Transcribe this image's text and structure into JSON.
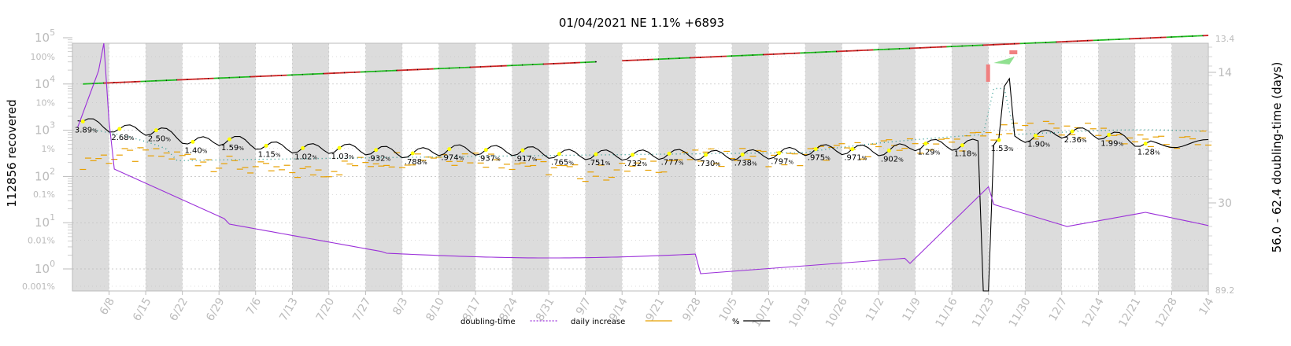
{
  "chart_data": {
    "type": "line",
    "title": "01/04/2021 NE 1.1% +6893",
    "ylabel_left": "112856 recovered",
    "ylabel_right": "56.0 - 62.4 doubling-time (days)",
    "y_left_scale": "log",
    "y_left_ticks": [
      "10^0",
      "10^1",
      "10^2",
      "10^3",
      "10^4",
      "10^5"
    ],
    "y_left_ticks_data": [
      {
        "base": "10",
        "exp": "0",
        "value": 1
      },
      {
        "base": "10",
        "exp": "1",
        "value": 10
      },
      {
        "base": "10",
        "exp": "2",
        "value": 100
      },
      {
        "base": "10",
        "exp": "3",
        "value": 1000
      },
      {
        "base": "10",
        "exp": "4",
        "value": 10000
      },
      {
        "base": "10",
        "exp": "5",
        "value": 100000
      }
    ],
    "y_pct_ticks": [
      "0.001%",
      "0.01%",
      "0.1%",
      "1%",
      "10%",
      "100%"
    ],
    "y_right_ticks": [
      "13.4",
      "14",
      "30",
      "89.2"
    ],
    "x_ticks": [
      "6/8",
      "6/15",
      "6/22",
      "6/29",
      "7/6",
      "7/13",
      "7/20",
      "7/27",
      "8/3",
      "8/10",
      "8/17",
      "8/24",
      "8/31",
      "9/7",
      "9/14",
      "9/21",
      "9/28",
      "10/5",
      "10/12",
      "10/19",
      "10/26",
      "11/2",
      "11/9",
      "11/16",
      "11/23",
      "11/30",
      "12/7",
      "12/14",
      "12/21",
      "12/28",
      "1/4"
    ],
    "grid": true,
    "legend_position": "bottom",
    "legend": [
      {
        "name": "doubling-time",
        "color": "#9b30d9",
        "style": "dotted"
      },
      {
        "name": "daily increase",
        "color": "#e8a000",
        "style": "solid"
      },
      {
        "name": "%",
        "color": "#000000",
        "style": "solid"
      }
    ],
    "pct_annotations": [
      {
        "date": "6/3",
        "label": "3.89"
      },
      {
        "date": "6/10",
        "label": "2.68"
      },
      {
        "date": "6/17",
        "label": "2.50"
      },
      {
        "date": "6/24",
        "label": "1.40"
      },
      {
        "date": "7/1",
        "label": "1.59"
      },
      {
        "date": "7/8",
        "label": "1.15"
      },
      {
        "date": "7/15",
        "label": "1.02"
      },
      {
        "date": "7/22",
        "label": "1.03"
      },
      {
        "date": "7/29",
        "label": ".932"
      },
      {
        "date": "8/5",
        "label": ".788"
      },
      {
        "date": "8/12",
        "label": ".974"
      },
      {
        "date": "8/19",
        "label": ".937"
      },
      {
        "date": "8/26",
        "label": ".917"
      },
      {
        "date": "9/2",
        "label": ".765"
      },
      {
        "date": "9/9",
        "label": ".751"
      },
      {
        "date": "9/16",
        "label": ".732"
      },
      {
        "date": "9/23",
        "label": ".777"
      },
      {
        "date": "9/30",
        "label": ".730"
      },
      {
        "date": "10/7",
        "label": ".738"
      },
      {
        "date": "10/14",
        "label": ".797"
      },
      {
        "date": "10/21",
        "label": ".975"
      },
      {
        "date": "10/28",
        "label": ".971"
      },
      {
        "date": "11/4",
        "label": ".902"
      },
      {
        "date": "11/11",
        "label": "1.29"
      },
      {
        "date": "11/18",
        "label": "1.18"
      },
      {
        "date": "11/25",
        "label": "1.53"
      },
      {
        "date": "12/2",
        "label": "1.90"
      },
      {
        "date": "12/9",
        "label": "2.36"
      },
      {
        "date": "12/16",
        "label": "1.99"
      },
      {
        "date": "12/23",
        "label": "1.28"
      }
    ],
    "colors": {
      "doubling_time": "#9b30d9",
      "daily_increase": "#e8a000",
      "pct": "#000000",
      "cumulative_up": "#22bb22",
      "cumulative_down": "#cc2222",
      "weekend_band": "#dcdcdc",
      "grid": "#bbbbbb",
      "ticks": "#bbbbbb",
      "marker": "#ffff00"
    }
  }
}
